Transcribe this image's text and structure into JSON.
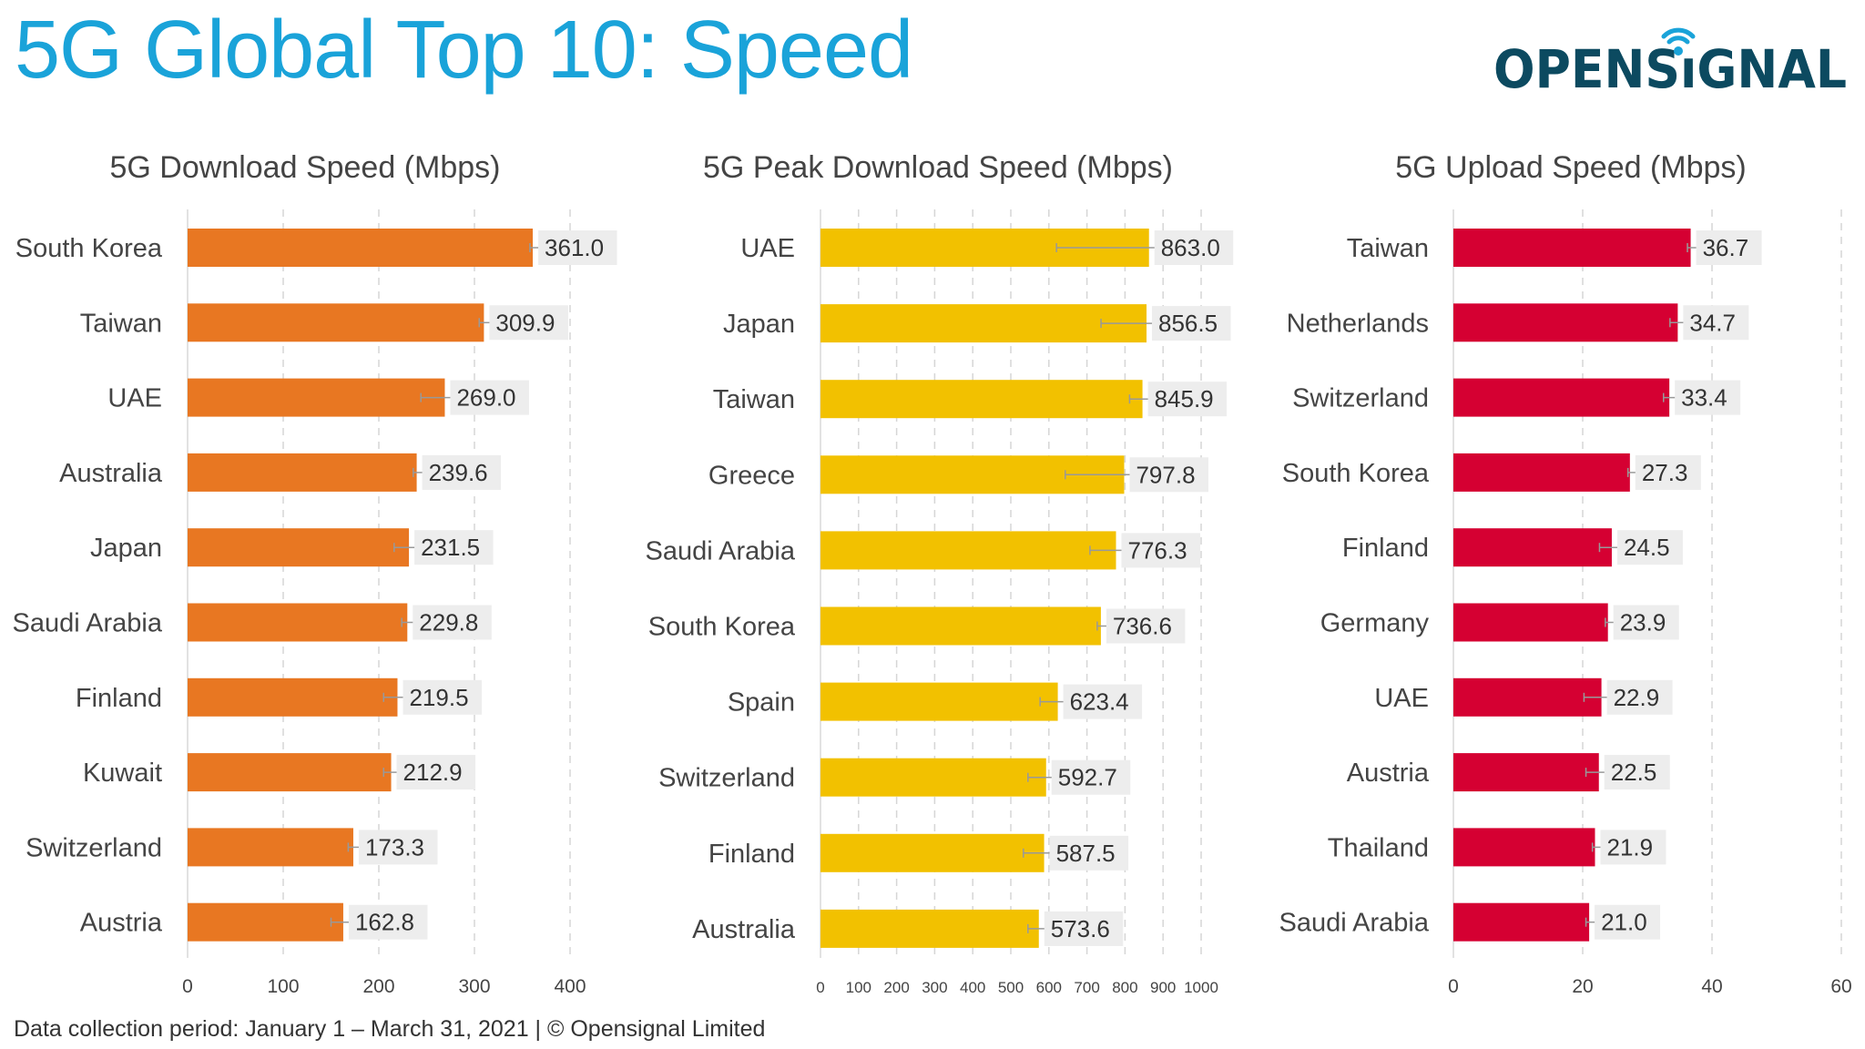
{
  "title": "5G Global Top 10: Speed",
  "logo": {
    "text": "OPENSIGNAL",
    "color": "#0c4a60",
    "accent": "#1aa3d9"
  },
  "footer": "Data collection period: January 1 – March 31, 2021  |  © Opensignal Limited",
  "chart_data": [
    {
      "type": "bar",
      "orientation": "horizontal",
      "title": "5G Download Speed (Mbps)",
      "color": "#e87722",
      "xlim": [
        0,
        400
      ],
      "ticks": [
        "0",
        "100",
        "200",
        "300",
        "400"
      ],
      "grid": true,
      "categories": [
        "South Korea",
        "Taiwan",
        "UAE",
        "Australia",
        "Japan",
        "Saudi Arabia",
        "Finland",
        "Kuwait",
        "Switzerland",
        "Austria"
      ],
      "values": [
        361.0,
        309.9,
        269.0,
        239.6,
        231.5,
        229.8,
        219.5,
        212.9,
        173.3,
        162.8
      ],
      "labels": [
        "361.0",
        "309.9",
        "269.0",
        "239.6",
        "231.5",
        "229.8",
        "219.5",
        "212.9",
        "173.3",
        "162.8"
      ],
      "ci_low": [
        358,
        305,
        244,
        236,
        216,
        224,
        205,
        205,
        168,
        150
      ]
    },
    {
      "type": "bar",
      "orientation": "horizontal",
      "title": "5G Peak Download Speed (Mbps)",
      "color": "#f2c100",
      "xlim": [
        0,
        1000
      ],
      "ticks": [
        "0",
        "100",
        "200",
        "300",
        "400",
        "500",
        "600",
        "700",
        "800",
        "900",
        "1000"
      ],
      "grid": true,
      "categories": [
        "UAE",
        "Japan",
        "Taiwan",
        "Greece",
        "Saudi Arabia",
        "South Korea",
        "Spain",
        "Switzerland",
        "Finland",
        "Australia"
      ],
      "values": [
        863.0,
        856.5,
        845.9,
        797.8,
        776.3,
        736.6,
        623.4,
        592.7,
        587.5,
        573.6
      ],
      "labels": [
        "863.0",
        "856.5",
        "845.9",
        "797.8",
        "776.3",
        "736.6",
        "623.4",
        "592.7",
        "587.5",
        "573.6"
      ],
      "ci_low": [
        620,
        737,
        812,
        643,
        708,
        727,
        577,
        545,
        533,
        545
      ]
    },
    {
      "type": "bar",
      "orientation": "horizontal",
      "title": "5G Upload Speed (Mbps)",
      "color": "#d50032",
      "xlim": [
        0,
        60
      ],
      "ticks": [
        "0",
        "20",
        "40",
        "60"
      ],
      "grid": true,
      "categories": [
        "Taiwan",
        "Netherlands",
        "Switzerland",
        "South Korea",
        "Finland",
        "Germany",
        "UAE",
        "Austria",
        "Thailand",
        "Saudi Arabia"
      ],
      "values": [
        36.7,
        34.7,
        33.4,
        27.3,
        24.5,
        23.9,
        22.9,
        22.5,
        21.9,
        21.0
      ],
      "labels": [
        "36.7",
        "34.7",
        "33.4",
        "27.3",
        "24.5",
        "23.9",
        "22.9",
        "22.5",
        "21.9",
        "21.0"
      ],
      "ci_low": [
        36.2,
        33.5,
        32.5,
        27.0,
        22.6,
        23.5,
        20.2,
        20.5,
        21.5,
        20.5
      ]
    }
  ]
}
